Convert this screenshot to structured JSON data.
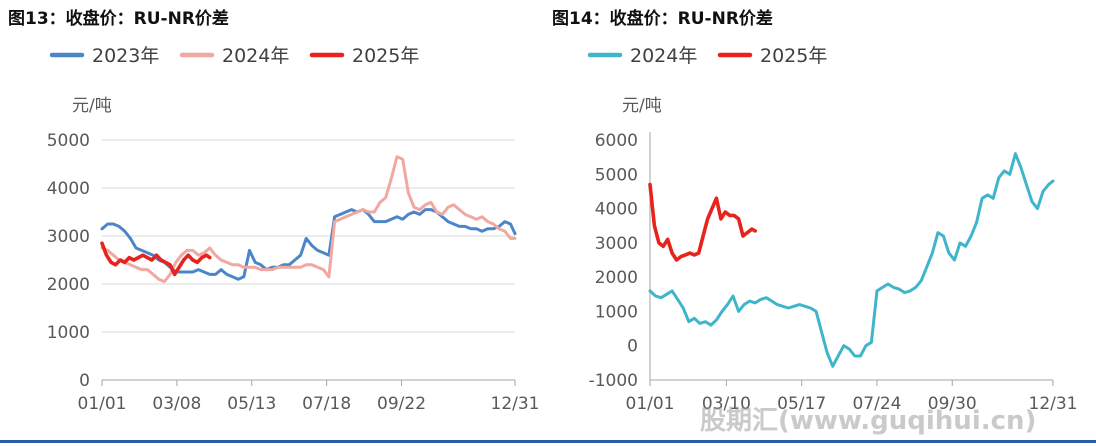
{
  "figures": {
    "left_title": "图13：收盘价：RU-NR价差",
    "right_title": "图14：收盘价：RU-NR价差"
  },
  "watermark": "股期汇(www.guqihui.cn)",
  "chart_data": [
    {
      "type": "line",
      "ylabel": "元/吨",
      "ylim": [
        0,
        5000
      ],
      "yticks": [
        0,
        1000,
        2000,
        3000,
        4000,
        5000
      ],
      "xlim": [
        0,
        364
      ],
      "xticks": [
        {
          "label": "01/01",
          "day": 0
        },
        {
          "label": "03/08",
          "day": 66
        },
        {
          "label": "05/13",
          "day": 132
        },
        {
          "label": "07/18",
          "day": 198
        },
        {
          "label": "09/22",
          "day": 264
        },
        {
          "label": "12/31",
          "day": 364
        }
      ],
      "legend_position": "top-left",
      "grid": "horizontal",
      "series": [
        {
          "name": "2023年",
          "color": "#4a86c8",
          "x": [
            0,
            5,
            10,
            15,
            20,
            25,
            30,
            35,
            40,
            45,
            50,
            55,
            60,
            65,
            70,
            75,
            80,
            85,
            90,
            95,
            100,
            105,
            110,
            115,
            120,
            125,
            130,
            135,
            140,
            145,
            150,
            155,
            160,
            165,
            170,
            175,
            180,
            185,
            190,
            195,
            200,
            205,
            210,
            215,
            220,
            225,
            230,
            235,
            240,
            245,
            250,
            255,
            260,
            265,
            270,
            275,
            280,
            285,
            290,
            295,
            300,
            305,
            310,
            315,
            320,
            325,
            330,
            335,
            340,
            345,
            350,
            355,
            360,
            364
          ],
          "y": [
            3150,
            3250,
            3250,
            3200,
            3100,
            2950,
            2750,
            2700,
            2650,
            2600,
            2500,
            2450,
            2350,
            2250,
            2250,
            2250,
            2250,
            2300,
            2250,
            2200,
            2200,
            2300,
            2200,
            2150,
            2100,
            2150,
            2700,
            2450,
            2400,
            2300,
            2350,
            2350,
            2400,
            2400,
            2500,
            2600,
            2950,
            2800,
            2700,
            2650,
            2600,
            3400,
            3450,
            3500,
            3550,
            3500,
            3550,
            3450,
            3300,
            3300,
            3300,
            3350,
            3400,
            3350,
            3450,
            3500,
            3450,
            3550,
            3550,
            3500,
            3400,
            3300,
            3250,
            3200,
            3200,
            3150,
            3150,
            3100,
            3150,
            3150,
            3200,
            3300,
            3250,
            3050
          ]
        },
        {
          "name": "2024年",
          "color": "#f0a8a0",
          "x": [
            0,
            5,
            10,
            15,
            20,
            25,
            30,
            35,
            40,
            45,
            50,
            55,
            60,
            65,
            70,
            75,
            80,
            85,
            90,
            95,
            100,
            105,
            110,
            115,
            120,
            125,
            130,
            135,
            140,
            145,
            150,
            155,
            160,
            165,
            170,
            175,
            180,
            185,
            190,
            195,
            200,
            205,
            210,
            215,
            220,
            225,
            230,
            235,
            240,
            245,
            250,
            255,
            260,
            265,
            270,
            275,
            280,
            285,
            290,
            295,
            300,
            305,
            310,
            315,
            320,
            325,
            330,
            335,
            340,
            345,
            350,
            355,
            360,
            364
          ],
          "y": [
            2750,
            2700,
            2600,
            2500,
            2450,
            2400,
            2350,
            2300,
            2300,
            2200,
            2100,
            2050,
            2200,
            2450,
            2600,
            2700,
            2700,
            2600,
            2650,
            2750,
            2600,
            2500,
            2450,
            2400,
            2400,
            2350,
            2350,
            2350,
            2300,
            2300,
            2300,
            2350,
            2350,
            2350,
            2350,
            2350,
            2400,
            2400,
            2350,
            2300,
            2150,
            3300,
            3350,
            3400,
            3450,
            3500,
            3550,
            3500,
            3500,
            3700,
            3800,
            4200,
            4650,
            4600,
            3900,
            3600,
            3550,
            3650,
            3700,
            3500,
            3450,
            3600,
            3650,
            3550,
            3450,
            3400,
            3350,
            3400,
            3300,
            3250,
            3150,
            3100,
            2950,
            2950
          ]
        },
        {
          "name": "2025年",
          "color": "#e8231e",
          "x": [
            0,
            4,
            8,
            12,
            16,
            20,
            24,
            28,
            32,
            36,
            40,
            44,
            48,
            52,
            56,
            60,
            64,
            68,
            72,
            76,
            80,
            84,
            88,
            92,
            95
          ],
          "y": [
            2850,
            2600,
            2450,
            2400,
            2500,
            2450,
            2550,
            2500,
            2550,
            2600,
            2550,
            2500,
            2600,
            2500,
            2450,
            2400,
            2200,
            2350,
            2500,
            2600,
            2500,
            2450,
            2550,
            2600,
            2550
          ]
        }
      ]
    },
    {
      "type": "line",
      "ylabel": "元/吨",
      "ylim": [
        -1000,
        6000
      ],
      "yticks": [
        -1000,
        0,
        1000,
        2000,
        3000,
        4000,
        5000,
        6000
      ],
      "xlim": [
        0,
        364
      ],
      "xticks": [
        {
          "label": "01/01",
          "day": 0
        },
        {
          "label": "03/10",
          "day": 69
        },
        {
          "label": "05/17",
          "day": 137
        },
        {
          "label": "07/24",
          "day": 205
        },
        {
          "label": "09/30",
          "day": 273
        },
        {
          "label": "12/31",
          "day": 364
        }
      ],
      "legend_position": "top-left",
      "grid": "none",
      "series": [
        {
          "name": "2024年",
          "color": "#3fb5cc",
          "x": [
            0,
            5,
            10,
            15,
            20,
            25,
            30,
            35,
            40,
            45,
            50,
            55,
            60,
            65,
            70,
            75,
            80,
            85,
            90,
            95,
            100,
            105,
            110,
            115,
            120,
            125,
            130,
            135,
            140,
            145,
            150,
            155,
            160,
            165,
            170,
            175,
            180,
            185,
            190,
            195,
            200,
            205,
            210,
            215,
            220,
            225,
            230,
            235,
            240,
            245,
            250,
            255,
            260,
            265,
            270,
            275,
            280,
            285,
            290,
            295,
            300,
            305,
            310,
            315,
            320,
            325,
            330,
            335,
            340,
            345,
            350,
            355,
            360,
            364
          ],
          "y": [
            1600,
            1450,
            1400,
            1500,
            1600,
            1350,
            1100,
            700,
            800,
            650,
            700,
            600,
            750,
            1000,
            1200,
            1450,
            1000,
            1200,
            1300,
            1250,
            1350,
            1400,
            1300,
            1200,
            1150,
            1100,
            1150,
            1200,
            1150,
            1100,
            1000,
            400,
            -200,
            -600,
            -300,
            0,
            -100,
            -300,
            -300,
            0,
            100,
            1600,
            1700,
            1800,
            1700,
            1650,
            1550,
            1600,
            1700,
            1900,
            2300,
            2700,
            3300,
            3200,
            2700,
            2500,
            3000,
            2900,
            3200,
            3600,
            4300,
            4400,
            4300,
            4900,
            5100,
            5000,
            5600,
            5200,
            4700,
            4200,
            4000,
            4500,
            4700,
            4800
          ]
        },
        {
          "name": "2025年",
          "color": "#e8231e",
          "x": [
            0,
            4,
            8,
            12,
            16,
            20,
            24,
            28,
            32,
            36,
            40,
            44,
            48,
            52,
            56,
            60,
            64,
            68,
            72,
            76,
            80,
            84,
            88,
            92,
            95
          ],
          "y": [
            4700,
            3500,
            3000,
            2900,
            3100,
            2700,
            2500,
            2600,
            2650,
            2700,
            2650,
            2700,
            3200,
            3700,
            4000,
            4300,
            3700,
            3900,
            3800,
            3800,
            3700,
            3200,
            3300,
            3400,
            3350
          ]
        }
      ]
    }
  ]
}
